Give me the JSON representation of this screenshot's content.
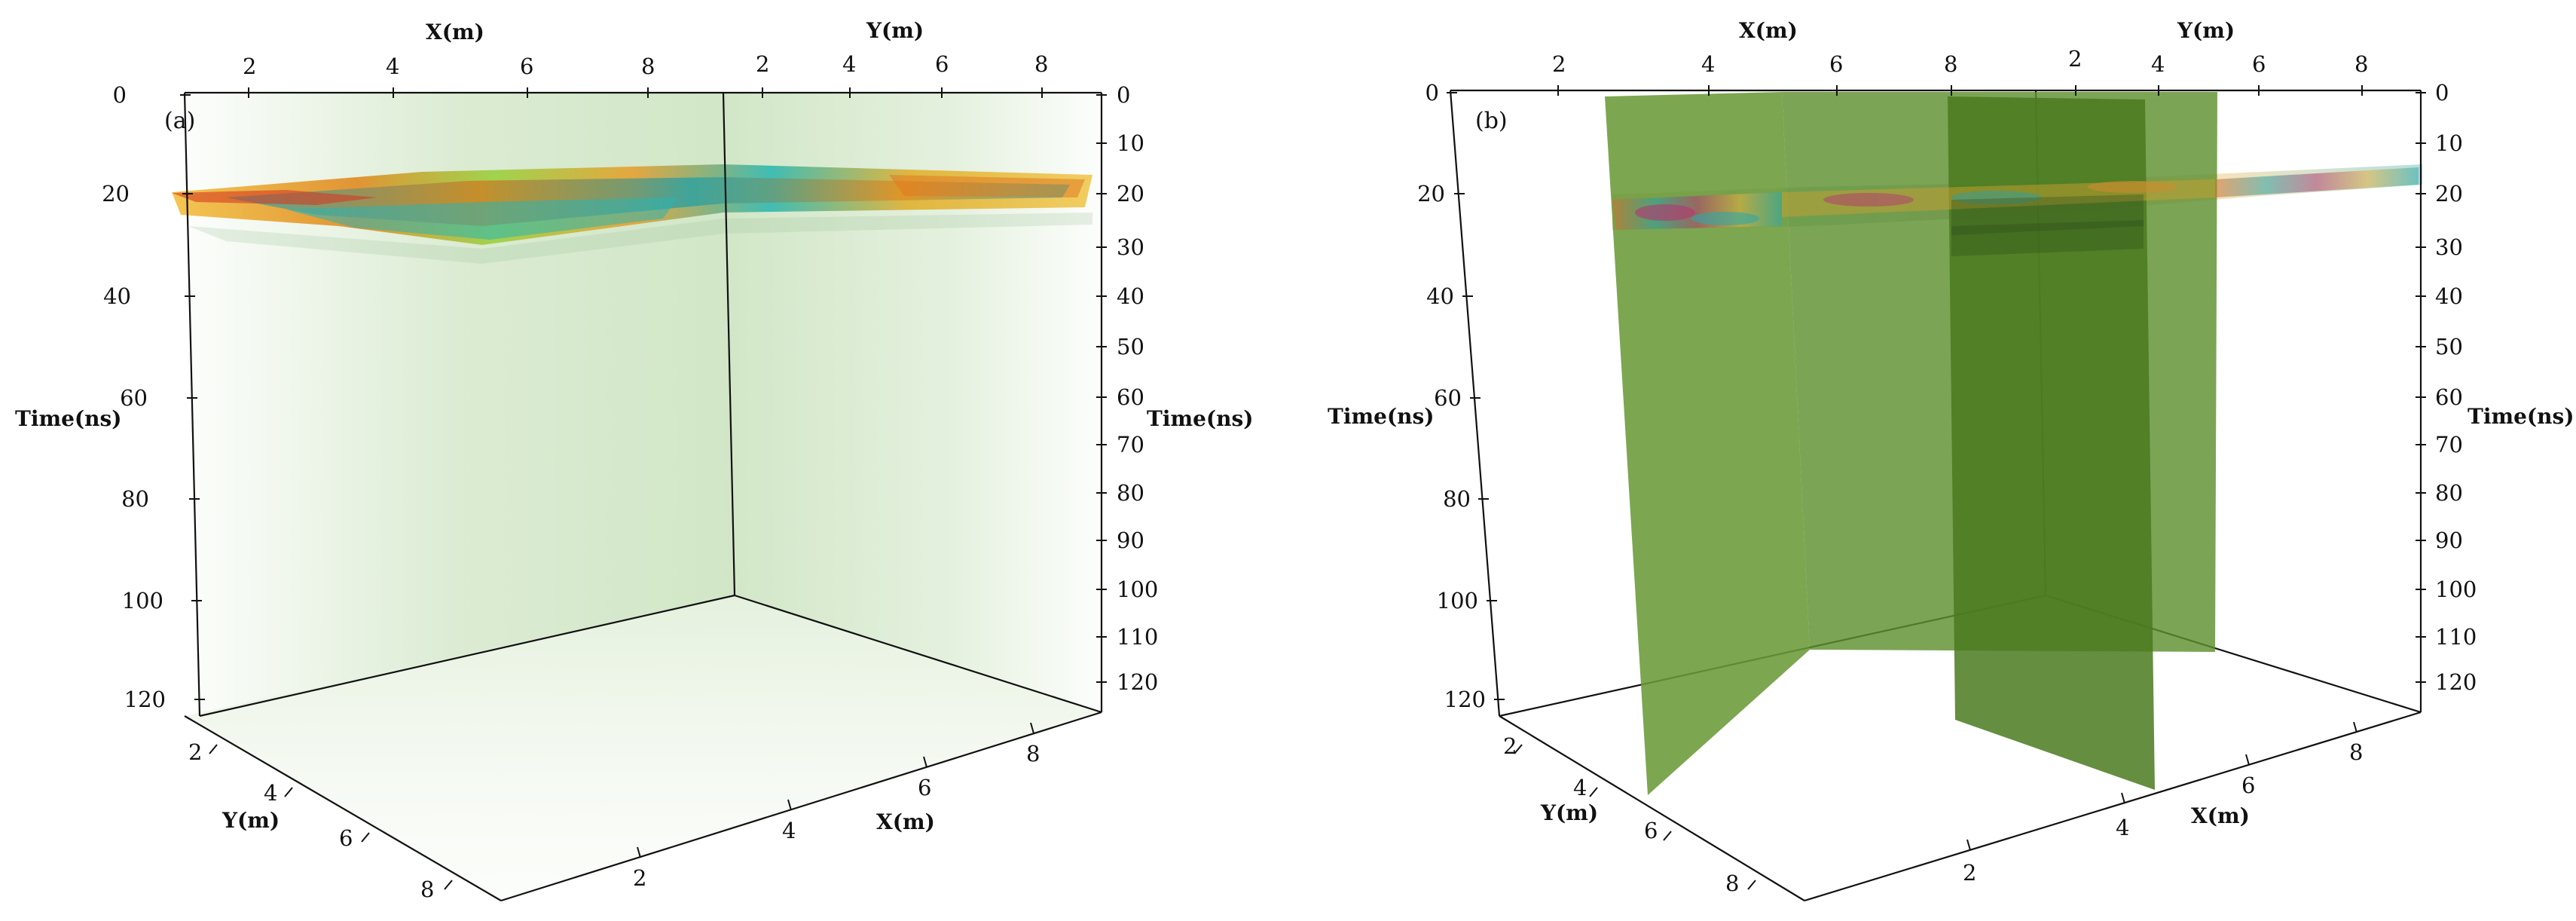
{
  "panels": [
    {
      "label": "(a)",
      "axis_titles": {
        "x_top": "X(m)",
        "y_top": "Y(m)",
        "time_left": "Time(ns)",
        "time_right": "Time(ns)",
        "y_bottom": "Y(m)",
        "x_bottom": "X(m)"
      },
      "x_top_ticks": [
        "2",
        "4",
        "6",
        "8"
      ],
      "y_top_ticks": [
        "2",
        "4",
        "6",
        "8"
      ],
      "time_left_ticks": [
        "0",
        "20",
        "40",
        "60",
        "80",
        "100",
        "120"
      ],
      "time_right_ticks": [
        "0",
        "10",
        "20",
        "30",
        "40",
        "50",
        "60",
        "70",
        "80",
        "90",
        "100",
        "110",
        "120"
      ],
      "y_bottom_ticks": [
        "2",
        "4",
        "6",
        "8"
      ],
      "x_bottom_ticks": [
        "2",
        "4",
        "6",
        "8"
      ]
    },
    {
      "label": "(b)",
      "axis_titles": {
        "x_top": "X(m)",
        "y_top": "Y(m)",
        "time_left": "Time(ns)",
        "time_right": "Time(ns)",
        "y_bottom": "Y(m)",
        "x_bottom": "X(m)"
      },
      "x_top_ticks": [
        "2",
        "4",
        "6",
        "8"
      ],
      "y_top_ticks": [
        "2",
        "4",
        "6",
        "8"
      ],
      "time_left_ticks": [
        "0",
        "20",
        "40",
        "60",
        "80",
        "100",
        "120"
      ],
      "time_right_ticks": [
        "0",
        "10",
        "20",
        "30",
        "40",
        "50",
        "60",
        "70",
        "80",
        "90",
        "100",
        "110",
        "120"
      ],
      "y_bottom_ticks": [
        "2",
        "4",
        "6",
        "8"
      ],
      "x_bottom_ticks": [
        "2",
        "4",
        "6",
        "8"
      ]
    }
  ],
  "colors": {
    "volume_tint": "#cfe5c4",
    "slice_plane": "#6a9a38",
    "slice_plane_dark": "#4a7a1e",
    "reflection_warm": "#e8a020",
    "reflection_cool": "#20b0b0"
  }
}
